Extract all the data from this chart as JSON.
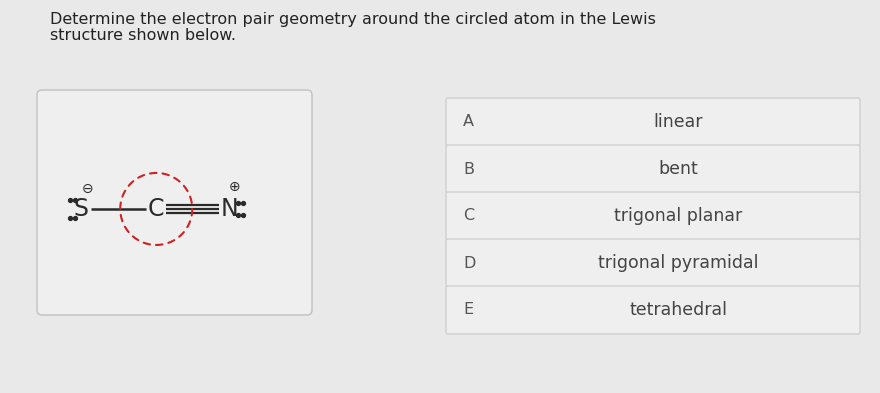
{
  "title_line1": "Determine the electron pair geometry around the circled atom in the Lewis",
  "title_line2": "structure shown below.",
  "title_fontsize": 11.5,
  "bg_color": "#e9e9e9",
  "box_bg": "#efefef",
  "box_border": "#c8c8c8",
  "lewis_box_bg": "#efefef",
  "lewis_box_border": "#c0c0c0",
  "options": [
    {
      "label": "A",
      "text": "linear"
    },
    {
      "label": "B",
      "text": "bent"
    },
    {
      "label": "C",
      "text": "trigonal planar"
    },
    {
      "label": "D",
      "text": "trigonal pyramidal"
    },
    {
      "label": "E",
      "text": "tetrahedral"
    }
  ],
  "option_label_color": "#555555",
  "option_text_color": "#444444",
  "option_fontsize": 12.5,
  "label_fontsize": 11.5,
  "dashed_circle_color": "#cc2222",
  "bond_color": "#2a2a2a",
  "atom_color": "#2a2a2a",
  "charge_color": "#2a2a2a"
}
